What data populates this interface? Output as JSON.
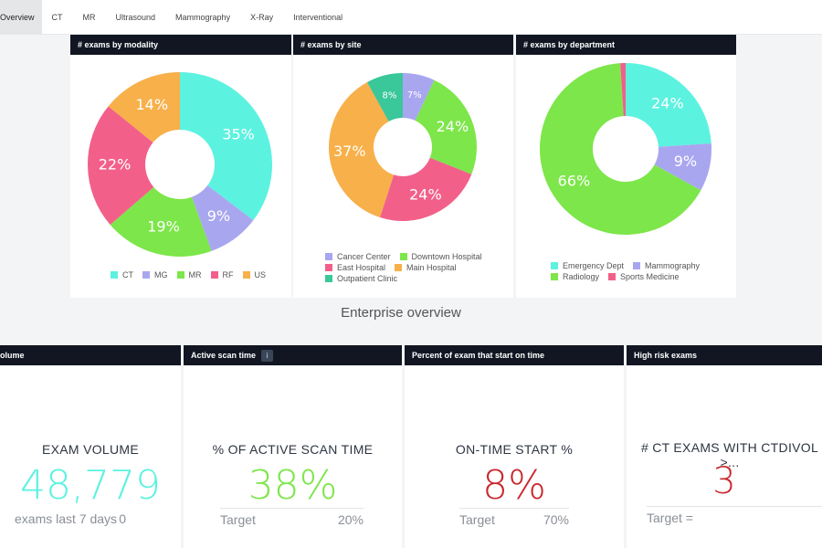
{
  "tabs": [
    {
      "label": "Overview",
      "active": true
    },
    {
      "label": "CT"
    },
    {
      "label": "MR"
    },
    {
      "label": "Ultrasound"
    },
    {
      "label": "Mammography"
    },
    {
      "label": "X-Ray"
    },
    {
      "label": "Interventional"
    }
  ],
  "panels": {
    "modality": {
      "title": "# exams by modality",
      "legend": [
        "CT",
        "MG",
        "MR",
        "RF",
        "US"
      ]
    },
    "site": {
      "title": "# exams by site",
      "legend": [
        "Cancer Center",
        "Downtown Hospital",
        "East Hospital",
        "Main Hospital",
        "Outpatient Clinic"
      ]
    },
    "department": {
      "title": "# exams by department",
      "legend": [
        "Emergency Dept",
        "Mammography",
        "Radiology",
        "Sports Medicine"
      ]
    }
  },
  "chart_data": [
    {
      "type": "pie",
      "title": "# exams by modality",
      "donut": true,
      "categories": [
        "CT",
        "MG",
        "MR",
        "RF",
        "US"
      ],
      "values": [
        35,
        9,
        19,
        22,
        14
      ],
      "labels": [
        "35%",
        "9%",
        "19%",
        "22%",
        "14%"
      ],
      "colors": [
        "#5cf2e0",
        "#a9a6f0",
        "#7de64a",
        "#f2608a",
        "#f7b04a"
      ]
    },
    {
      "type": "pie",
      "title": "# exams by site",
      "donut": true,
      "categories": [
        "Cancer Center",
        "Downtown Hospital",
        "Main Hospital",
        "East Hospital",
        "Outpatient Clinic"
      ],
      "values": [
        7,
        24,
        24,
        37,
        8
      ],
      "labels": [
        "7%",
        "24%",
        "24%",
        "37%",
        "8%"
      ],
      "colors": [
        "#a9a6f0",
        "#7de64a",
        "#f2608a",
        "#f7b04a",
        "#3ac79a"
      ]
    },
    {
      "type": "pie",
      "title": "# exams by department",
      "donut": true,
      "categories": [
        "Emergency Dept",
        "Mammography",
        "Radiology",
        "Sports Medicine"
      ],
      "values": [
        24,
        9,
        66,
        1
      ],
      "labels": [
        "24%",
        "9%",
        "66%",
        ""
      ],
      "colors": [
        "#5cf2e0",
        "#a9a6f0",
        "#7de64a",
        "#f2608a"
      ]
    }
  ],
  "enterprise_title": "Enterprise overview",
  "kpis": [
    {
      "header": "olume",
      "title": "EXAM VOLUME",
      "value": "48,779",
      "footer_left": "exams last 7 days",
      "footer_right": "0",
      "color": "#5cf2e0"
    },
    {
      "header": "Active scan time",
      "badge": "i",
      "title": "% OF ACTIVE SCAN TIME",
      "value": "38%",
      "footer_left": "Target",
      "footer_right": "20%",
      "color": "#7de64a"
    },
    {
      "header": "Percent of exam that start on time",
      "title": "ON-TIME START %",
      "value": "8%",
      "footer_left": "Target",
      "footer_right": "70%",
      "color": "#c8282e"
    },
    {
      "header": "High risk exams",
      "title": "# CT EXAMS WITH CTDIVOL >...",
      "value": "3",
      "footer_left": "Target =",
      "footer_right": "",
      "color": "#c8282e"
    }
  ]
}
